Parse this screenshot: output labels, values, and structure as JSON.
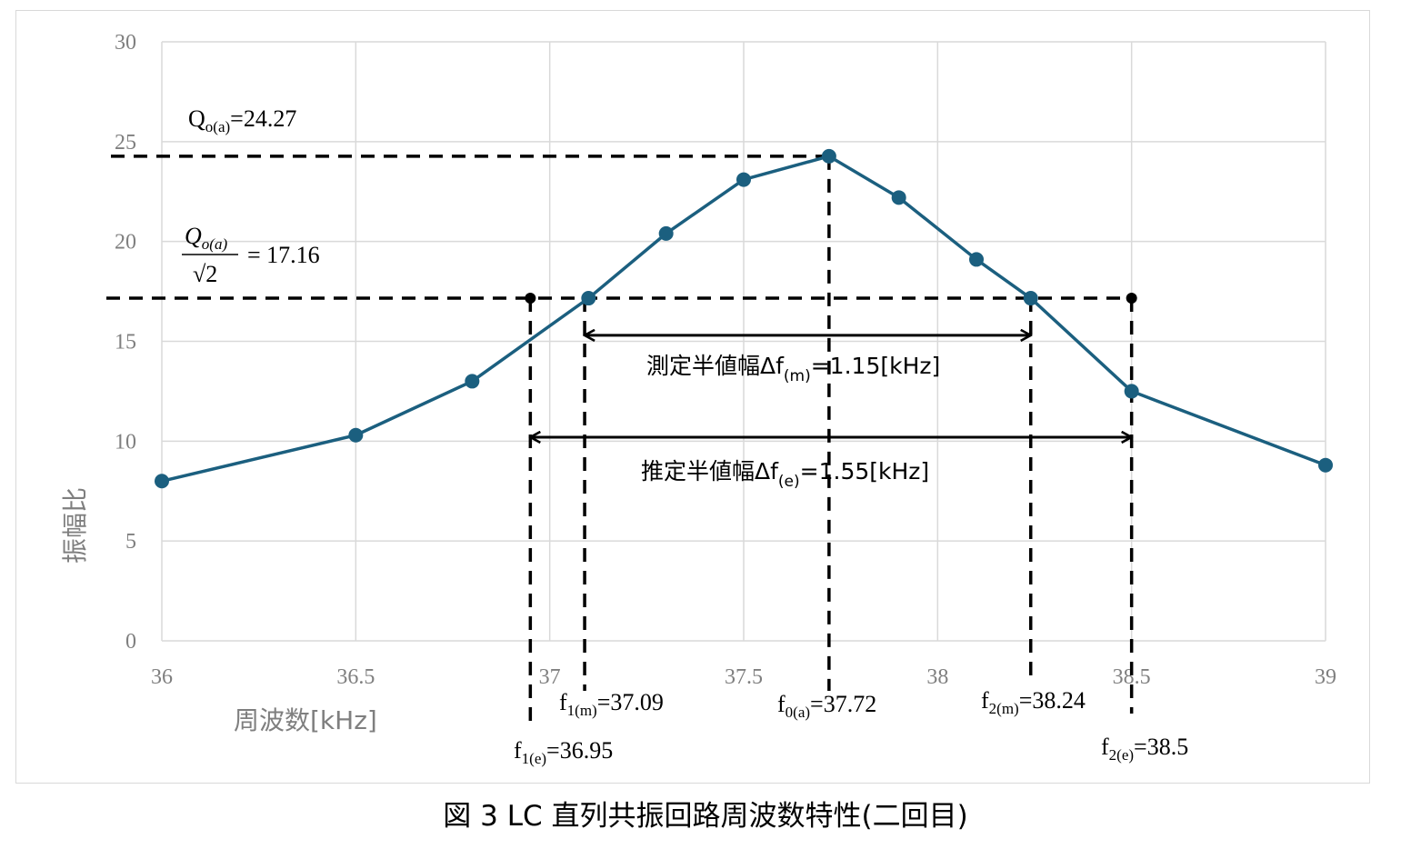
{
  "chart_data": {
    "type": "line",
    "xlabel": "周波数[kHz]",
    "ylabel": "振幅比",
    "xlim": [
      36,
      39
    ],
    "ylim": [
      0,
      30
    ],
    "x_ticks": [
      "36",
      "36.5",
      "37",
      "37.5",
      "38",
      "38.5",
      "39"
    ],
    "y_ticks": [
      "0",
      "5",
      "10",
      "15",
      "20",
      "25",
      "30"
    ],
    "grid": true,
    "series": [
      {
        "color": "#1b5f7f",
        "x": [
          36,
          36.5,
          36.8,
          37.1,
          37.3,
          37.5,
          37.72,
          37.9,
          38.1,
          38.24,
          38.5,
          39
        ],
        "y": [
          8.0,
          10.3,
          13.0,
          17.16,
          20.4,
          23.1,
          24.27,
          22.2,
          19.1,
          17.16,
          12.5,
          8.8
        ]
      }
    ],
    "reference_lines": {
      "peak_y": 24.27,
      "half_y": 17.16,
      "verticals": [
        36.95,
        37.09,
        37.72,
        38.24,
        38.5
      ],
      "estimated_points": [
        [
          36.95,
          17.16
        ],
        [
          38.5,
          17.16
        ]
      ]
    },
    "annotations": {
      "q_peak": {
        "base": "Q",
        "sub": "o(a)",
        "rest": "=24.27"
      },
      "q_half": {
        "num": "Q",
        "num_sub": "o(a)",
        "den": "√2",
        "rest": "= 17.16"
      },
      "measured_width": {
        "pre": "測定半値幅Δf",
        "sub": "(m)",
        "post": "=1.15[kHz]",
        "x1": 37.09,
        "x2": 38.24,
        "y": 15.3
      },
      "estimated_width": {
        "pre": "推定半値幅Δf",
        "sub": "(e)",
        "post": "=1.55[kHz]",
        "x1": 36.95,
        "x2": 38.5,
        "y": 10.2
      },
      "f1m": {
        "base": "f",
        "sub": "1(m)",
        "rest": "=37.09"
      },
      "f0a": {
        "base": "f",
        "sub": "0(a)",
        "rest": "=37.72"
      },
      "f2m": {
        "base": "f",
        "sub": "2(m)",
        "rest": "=38.24"
      },
      "f1e": {
        "base": "f",
        "sub": "1(e)",
        "rest": "=36.95"
      },
      "f2e": {
        "base": "f",
        "sub": "2(e)",
        "rest": "=38.5"
      }
    },
    "caption": "図 3 LC 直列共振回路周波数特性(二回目)"
  }
}
